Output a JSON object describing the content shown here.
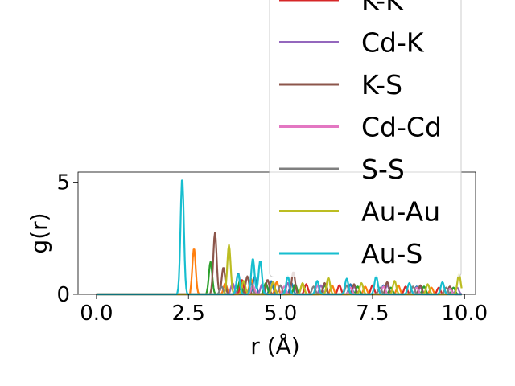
{
  "chart_data": {
    "type": "line",
    "xlabel": "r (Å)",
    "ylabel": "g(r)",
    "xlim": [
      -0.5,
      10.3
    ],
    "ylim": [
      0,
      5.45
    ],
    "x_ticks": [
      {
        "value": 0.0,
        "label": "0.0"
      },
      {
        "value": 2.5,
        "label": "2.5"
      },
      {
        "value": 5.0,
        "label": "5.0"
      },
      {
        "value": 7.5,
        "label": "7.5"
      },
      {
        "value": 10.0,
        "label": "10.0"
      }
    ],
    "y_ticks": [
      {
        "value": 0,
        "label": "0"
      },
      {
        "value": 5,
        "label": "5"
      }
    ],
    "legend_position": "upper-right (extends above plot area, partially clipped)",
    "series": [
      {
        "name": "",
        "color": "#1f77b4",
        "onset": 3.75,
        "peaks": [
          [
            3.85,
            0.95
          ],
          [
            4.3,
            0.8
          ],
          [
            4.75,
            0.6
          ],
          [
            5.3,
            0.5
          ],
          [
            6.0,
            0.4
          ],
          [
            6.9,
            0.45
          ],
          [
            7.8,
            0.4
          ],
          [
            8.7,
            0.35
          ],
          [
            9.6,
            0.3
          ]
        ]
      },
      {
        "name": "",
        "color": "#ff7f0e",
        "onset": 2.55,
        "peaks": [
          [
            2.65,
            2.05
          ],
          [
            3.5,
            0.5
          ],
          [
            4.2,
            0.7
          ],
          [
            4.9,
            0.55
          ],
          [
            5.6,
            0.45
          ],
          [
            6.4,
            0.4
          ],
          [
            7.3,
            0.35
          ],
          [
            8.2,
            0.4
          ],
          [
            9.1,
            0.3
          ]
        ]
      },
      {
        "name": "",
        "color": "#2ca02c",
        "onset": 3.0,
        "peaks": [
          [
            3.1,
            1.45
          ],
          [
            3.9,
            0.6
          ],
          [
            4.6,
            0.5
          ],
          [
            5.4,
            0.45
          ],
          [
            6.2,
            0.4
          ],
          [
            7.1,
            0.35
          ],
          [
            8.0,
            0.3
          ],
          [
            8.9,
            0.35
          ],
          [
            9.7,
            0.3
          ]
        ]
      },
      {
        "name": "K-K",
        "color": "#d62728",
        "onset": 3.8,
        "peaks": [
          [
            3.95,
            0.65
          ],
          [
            4.8,
            0.55
          ],
          [
            5.7,
            0.45
          ],
          [
            6.6,
            0.4
          ],
          [
            7.5,
            0.4
          ],
          [
            8.4,
            0.35
          ],
          [
            9.3,
            0.3
          ]
        ]
      },
      {
        "name": "Cd-K",
        "color": "#9467bd",
        "onset": 3.6,
        "peaks": [
          [
            3.7,
            0.5
          ],
          [
            4.5,
            0.45
          ],
          [
            5.2,
            0.5
          ],
          [
            6.1,
            0.4
          ],
          [
            7.0,
            0.35
          ],
          [
            7.9,
            0.4
          ],
          [
            8.8,
            0.3
          ],
          [
            9.8,
            0.3
          ]
        ]
      },
      {
        "name": "K-S",
        "color": "#8c564b",
        "onset": 3.1,
        "peaks": [
          [
            3.22,
            2.75
          ],
          [
            3.45,
            1.2
          ],
          [
            4.1,
            0.8
          ],
          [
            4.65,
            0.65
          ],
          [
            5.35,
            1.0
          ],
          [
            6.2,
            0.5
          ],
          [
            7.0,
            0.45
          ],
          [
            7.9,
            0.55
          ],
          [
            8.8,
            0.4
          ],
          [
            9.6,
            0.35
          ]
        ]
      },
      {
        "name": "Cd-Cd",
        "color": "#e377c2",
        "onset": 4.1,
        "peaks": [
          [
            4.25,
            0.4
          ],
          [
            5.1,
            0.35
          ],
          [
            6.0,
            0.4
          ],
          [
            6.9,
            0.3
          ],
          [
            7.8,
            0.35
          ],
          [
            8.7,
            0.3
          ],
          [
            9.6,
            0.25
          ]
        ]
      },
      {
        "name": "S-S",
        "color": "#7f7f7f",
        "onset": 3.3,
        "peaks": [
          [
            3.4,
            0.35
          ],
          [
            4.2,
            0.5
          ],
          [
            5.0,
            0.4
          ],
          [
            5.9,
            0.35
          ],
          [
            6.8,
            0.4
          ],
          [
            7.7,
            0.3
          ],
          [
            8.6,
            0.35
          ],
          [
            9.5,
            0.3
          ]
        ]
      },
      {
        "name": "Au-Au",
        "color": "#bcbd22",
        "onset": 3.45,
        "peaks": [
          [
            3.6,
            2.2
          ],
          [
            4.0,
            0.6
          ],
          [
            4.8,
            0.55
          ],
          [
            5.6,
            0.5
          ],
          [
            6.3,
            0.75
          ],
          [
            7.2,
            0.5
          ],
          [
            8.1,
            0.6
          ],
          [
            9.0,
            0.45
          ],
          [
            9.85,
            0.9
          ]
        ]
      },
      {
        "name": "Au-S",
        "color": "#17becf",
        "onset": 2.2,
        "peaks": [
          [
            2.33,
            5.2
          ],
          [
            3.85,
            0.9
          ],
          [
            4.25,
            1.6
          ],
          [
            4.45,
            1.5
          ],
          [
            5.2,
            0.8
          ],
          [
            6.0,
            0.6
          ],
          [
            6.8,
            0.7
          ],
          [
            7.6,
            0.8
          ],
          [
            8.5,
            0.5
          ],
          [
            9.4,
            0.55
          ]
        ]
      }
    ]
  }
}
